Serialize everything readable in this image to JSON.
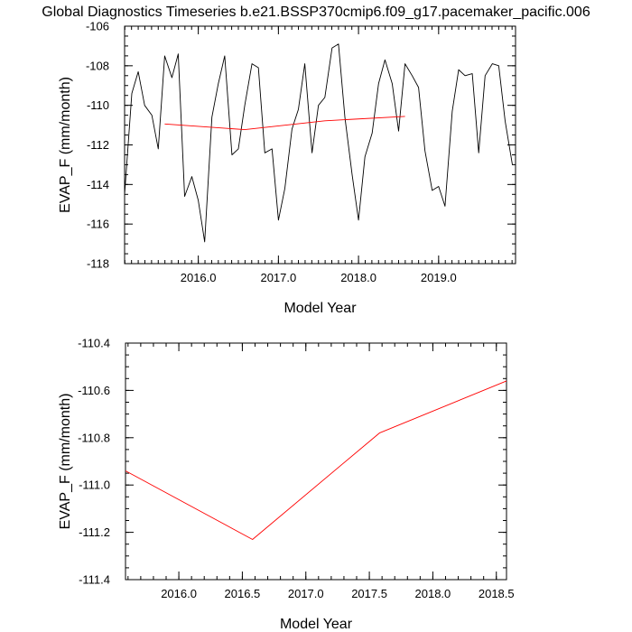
{
  "title": "Global Diagnostics Timeseries b.e21.BSSP370cmip6.f09_g17.pacemaker_pacific.006",
  "chart_data": [
    {
      "type": "line",
      "xlabel": "Model Year",
      "ylabel": "EVAP_F (mm/month)",
      "xlim": [
        2015.08,
        2019.96
      ],
      "ylim": [
        -118,
        -106
      ],
      "xticks": [
        2016.0,
        2017.0,
        2018.0,
        2019.0
      ],
      "xtick_labels": [
        "2016.0",
        "2017.0",
        "2018.0",
        "2019.0"
      ],
      "yticks": [
        -118,
        -116,
        -114,
        -112,
        -110,
        -108,
        -106
      ],
      "ytick_labels": [
        "-118",
        "-116",
        "-114",
        "-112",
        "-110",
        "-108",
        "-106"
      ],
      "grid": false,
      "series": [
        {
          "color": "#000000",
          "x": [
            2015.08,
            2015.17,
            2015.25,
            2015.33,
            2015.42,
            2015.5,
            2015.58,
            2015.67,
            2015.75,
            2015.83,
            2015.92,
            2016.0,
            2016.08,
            2016.17,
            2016.25,
            2016.33,
            2016.42,
            2016.5,
            2016.58,
            2016.67,
            2016.75,
            2016.83,
            2016.92,
            2017.0,
            2017.08,
            2017.17,
            2017.25,
            2017.33,
            2017.42,
            2017.5,
            2017.58,
            2017.67,
            2017.75,
            2017.83,
            2017.92,
            2018.0,
            2018.08,
            2018.17,
            2018.25,
            2018.33,
            2018.42,
            2018.5,
            2018.58,
            2018.67,
            2018.75,
            2018.83,
            2018.92,
            2019.0,
            2019.08,
            2019.17,
            2019.25,
            2019.33,
            2019.42,
            2019.5,
            2019.58,
            2019.67,
            2019.75,
            2019.83,
            2019.92
          ],
          "y": [
            -114.5,
            -109.4,
            -108.3,
            -110.0,
            -110.5,
            -112.2,
            -107.5,
            -108.6,
            -107.4,
            -114.6,
            -113.6,
            -114.8,
            -116.9,
            -110.6,
            -108.9,
            -107.5,
            -112.5,
            -112.2,
            -110.0,
            -107.9,
            -108.1,
            -112.4,
            -112.2,
            -115.8,
            -114.2,
            -111.2,
            -110.2,
            -107.9,
            -112.4,
            -110.0,
            -109.6,
            -107.1,
            -106.9,
            -110.6,
            -113.5,
            -115.8,
            -112.6,
            -111.4,
            -108.9,
            -107.7,
            -108.9,
            -111.3,
            -107.9,
            -108.5,
            -109.1,
            -112.3,
            -114.3,
            -114.1,
            -115.1,
            -110.3,
            -108.2,
            -108.5,
            -108.4,
            -112.4,
            -108.5,
            -107.9,
            -108.0,
            -110.8,
            -113.0
          ]
        },
        {
          "color": "#ff0000",
          "x": [
            2015.58,
            2016.58,
            2017.58,
            2018.58
          ],
          "y": [
            -110.94,
            -111.23,
            -110.78,
            -110.56
          ]
        }
      ]
    },
    {
      "type": "line",
      "xlabel": "Model Year",
      "ylabel": "EVAP_F (mm/month)",
      "xlim": [
        2015.58,
        2018.58
      ],
      "ylim": [
        -111.4,
        -110.4
      ],
      "xticks": [
        2016.0,
        2016.5,
        2017.0,
        2017.5,
        2018.0,
        2018.5
      ],
      "xtick_labels": [
        "2016.0",
        "2016.5",
        "2017.0",
        "2017.5",
        "2018.0",
        "2018.5"
      ],
      "yticks": [
        -111.4,
        -111.2,
        -111.0,
        -110.8,
        -110.6,
        -110.4
      ],
      "ytick_labels": [
        "-111.4",
        "-111.2",
        "-111.0",
        "-110.8",
        "-110.6",
        "-110.4"
      ],
      "grid": false,
      "series": [
        {
          "color": "#ff0000",
          "x": [
            2015.58,
            2016.58,
            2017.58,
            2018.58
          ],
          "y": [
            -110.94,
            -111.23,
            -110.78,
            -110.56
          ]
        }
      ]
    }
  ]
}
